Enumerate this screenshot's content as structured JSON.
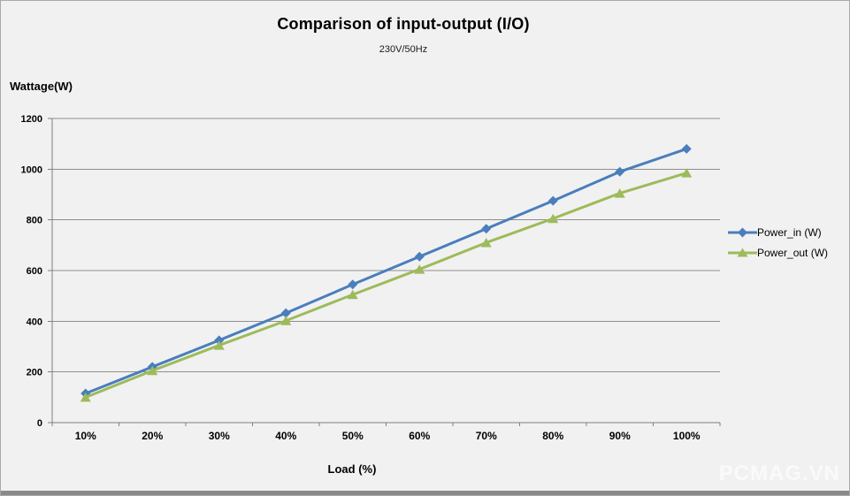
{
  "watermark": "PCMAG.VN",
  "chart_data": {
    "type": "line",
    "title": "Comparison of input-output (I/O)",
    "subtitle": "230V/50Hz",
    "xlabel": "Load (%)",
    "ylabel": "Wattage(W)",
    "categories": [
      "10%",
      "20%",
      "30%",
      "40%",
      "50%",
      "60%",
      "70%",
      "80%",
      "90%",
      "100%"
    ],
    "series": [
      {
        "name": "Power_in (W)",
        "color": "#4a7ebc",
        "marker": "diamond",
        "values": [
          115,
          220,
          325,
          432,
          545,
          655,
          765,
          875,
          990,
          1080
        ]
      },
      {
        "name": "Power_out (W)",
        "color": "#9dbb5a",
        "marker": "triangle",
        "values": [
          100,
          205,
          305,
          402,
          505,
          605,
          710,
          805,
          905,
          985
        ]
      }
    ],
    "ylim": [
      0,
      1200
    ],
    "ytick_interval": 200,
    "grid": true,
    "legend_position": "right",
    "axis_color": "#7f7f7f",
    "grid_color": "#8e8e8e",
    "tick_label_color": "#000000"
  }
}
